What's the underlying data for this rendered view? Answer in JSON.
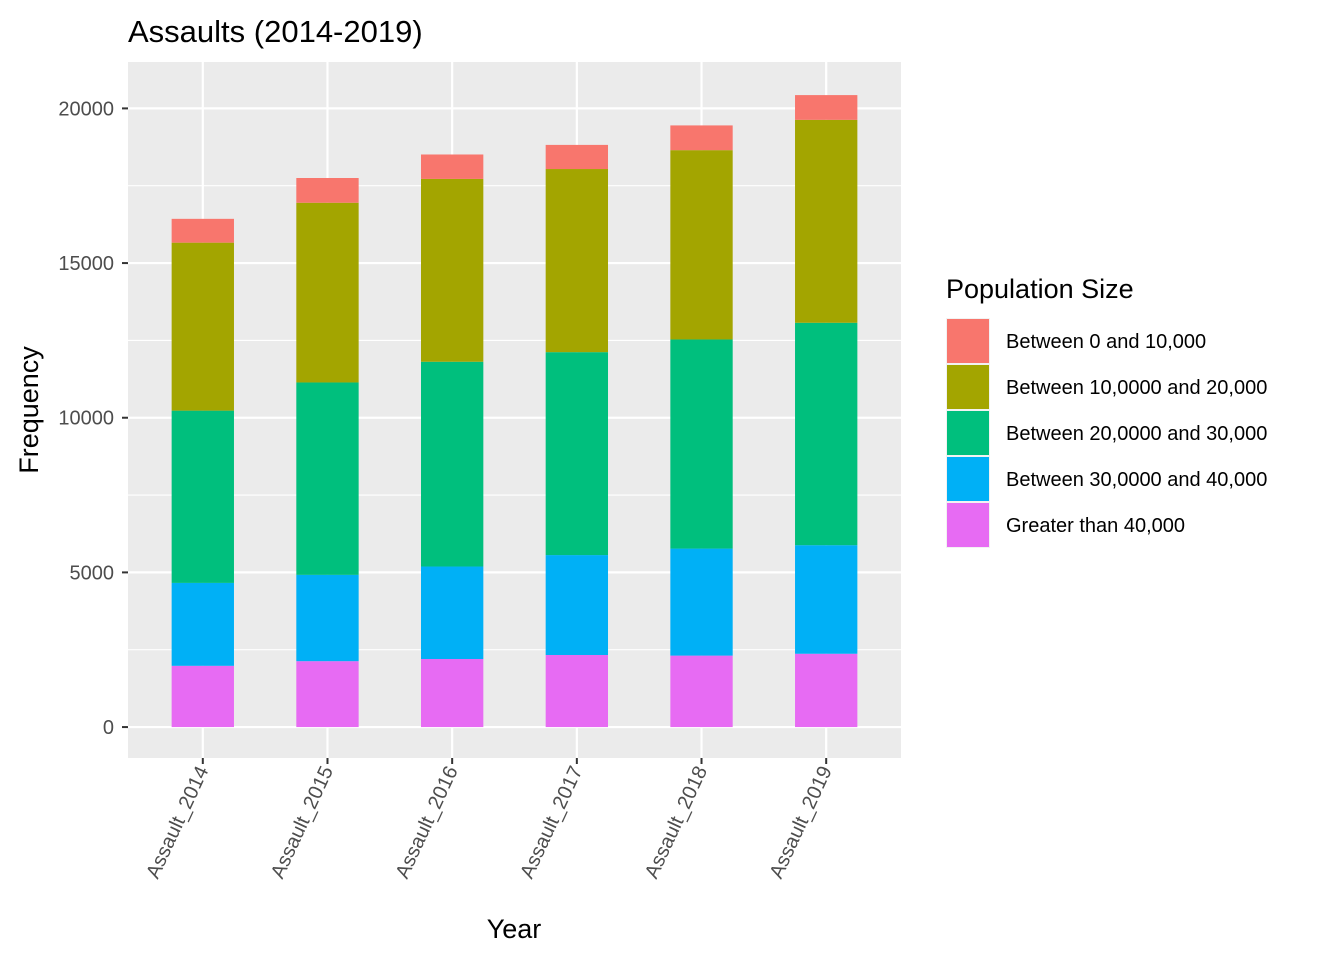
{
  "chart_data": {
    "type": "bar",
    "stacked": true,
    "title": "Assaults (2014-2019)",
    "xlabel": "Year",
    "ylabel": "Frequency",
    "ylim": [
      -1000,
      21500
    ],
    "yticks": [
      0,
      5000,
      10000,
      15000,
      20000
    ],
    "categories": [
      "Assault_2014",
      "Assault_2015",
      "Assault_2016",
      "Assault_2017",
      "Assault_2018",
      "Assault_2019"
    ],
    "legend": {
      "title": "Population Size",
      "position": "right"
    },
    "series": [
      {
        "name": "Greater than 40,000",
        "color": "#E76BF3",
        "values": [
          1980,
          2130,
          2200,
          2330,
          2310,
          2370
        ]
      },
      {
        "name": "Between 30,0000 and 40,000",
        "color": "#00B0F6",
        "values": [
          2680,
          2790,
          2990,
          3230,
          3460,
          3510
        ]
      },
      {
        "name": "Between 20,0000 and 30,000",
        "color": "#00BF7D",
        "values": [
          5570,
          6220,
          6620,
          6560,
          6760,
          7190
        ]
      },
      {
        "name": "Between 10,0000 and 20,000",
        "color": "#A3A500",
        "values": [
          5430,
          5810,
          5910,
          5920,
          6120,
          6560
        ]
      },
      {
        "name": "Between 0 and 10,000",
        "color": "#F8766D",
        "values": [
          770,
          800,
          790,
          780,
          800,
          800
        ]
      }
    ],
    "grid": true,
    "panel_background": "#EBEBEB",
    "grid_color": "#FFFFFF"
  }
}
